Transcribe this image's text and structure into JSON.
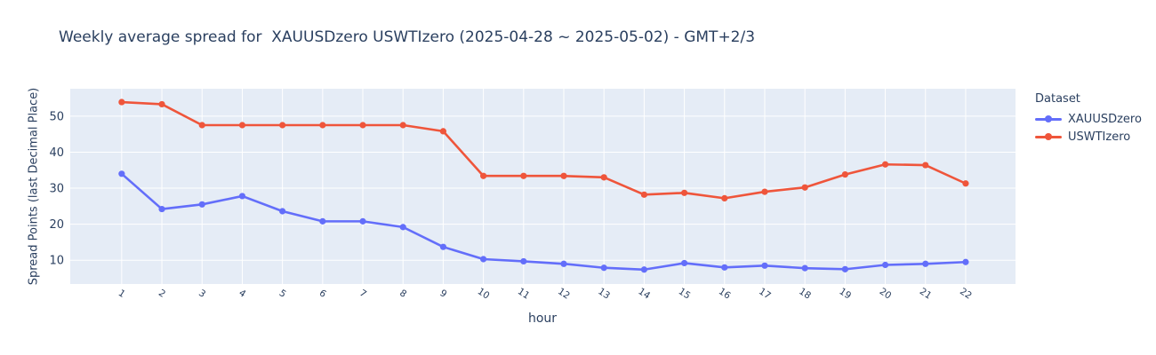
{
  "chart_data": {
    "type": "line",
    "title": "Weekly average spread for  XAUUSDzero USWTIzero (2025-04-28 ~ 2025-05-02) - GMT+2/3",
    "xlabel": "hour",
    "ylabel": "Spread Points (last Decimal Place)",
    "legend_title": "Dataset",
    "x": [
      1,
      2,
      3,
      4,
      5,
      6,
      7,
      8,
      9,
      10,
      11,
      12,
      13,
      14,
      15,
      16,
      17,
      18,
      19,
      20,
      21,
      22
    ],
    "series": [
      {
        "name": "XAUUSDzero",
        "color": "#636EFA",
        "values": [
          34.0,
          24.2,
          25.5,
          27.8,
          23.6,
          20.8,
          20.8,
          19.2,
          13.7,
          10.3,
          9.7,
          9.0,
          7.9,
          7.4,
          9.2,
          8.0,
          8.5,
          7.8,
          7.5,
          8.7,
          9.0,
          9.5
        ]
      },
      {
        "name": "USWTIzero",
        "color": "#EF553B",
        "values": [
          53.9,
          53.3,
          47.5,
          47.5,
          47.5,
          47.5,
          47.5,
          47.5,
          45.8,
          33.4,
          33.4,
          33.4,
          33.0,
          28.2,
          28.7,
          27.2,
          29.0,
          30.2,
          33.8,
          36.6,
          36.4,
          31.3
        ]
      }
    ],
    "yticks": [
      10,
      20,
      30,
      40,
      50
    ],
    "ylim": [
      3.4,
      57.6
    ],
    "xlim": [
      -0.28,
      23.24
    ],
    "grid": true,
    "legend_position": "right",
    "plot_bg": "#E5ECF6",
    "grid_color": "#FFFFFF",
    "font_color": "#2A3F5F",
    "x_tick_angle": 33
  }
}
